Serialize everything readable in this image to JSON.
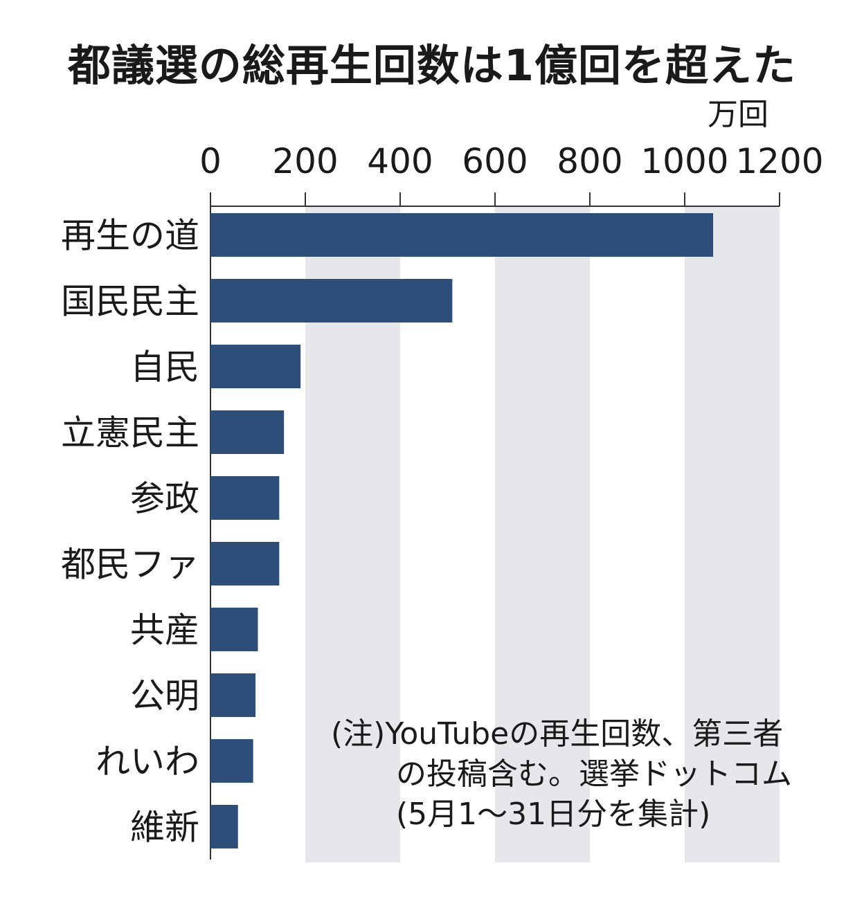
{
  "chart_data": {
    "type": "bar",
    "orientation": "horizontal",
    "title": "都議選の総再生回数は1億回を超えた",
    "unit": "万回",
    "xlim": [
      0,
      1200
    ],
    "ticks": [
      "0",
      "200",
      "400",
      "600",
      "800",
      "1000",
      "1200"
    ],
    "tick_values": [
      0,
      200,
      400,
      600,
      800,
      1000,
      1200
    ],
    "categories": [
      "再生の道",
      "国民民主",
      "自民",
      "立憲民主",
      "参政",
      "都民ファ",
      "共産",
      "公明",
      "れいわ",
      "維新"
    ],
    "values": [
      1060,
      510,
      190,
      155,
      145,
      145,
      100,
      95,
      90,
      58
    ],
    "grid": "alternating-bands",
    "bar_color": "#2c4e78",
    "band_color": "#e6e7ea"
  },
  "note": {
    "line1": "(注)YouTubeの再生回数、第三者",
    "line2": "の投稿含む。選挙ドットコム",
    "line3": "(5月1～31日分を集計)"
  }
}
